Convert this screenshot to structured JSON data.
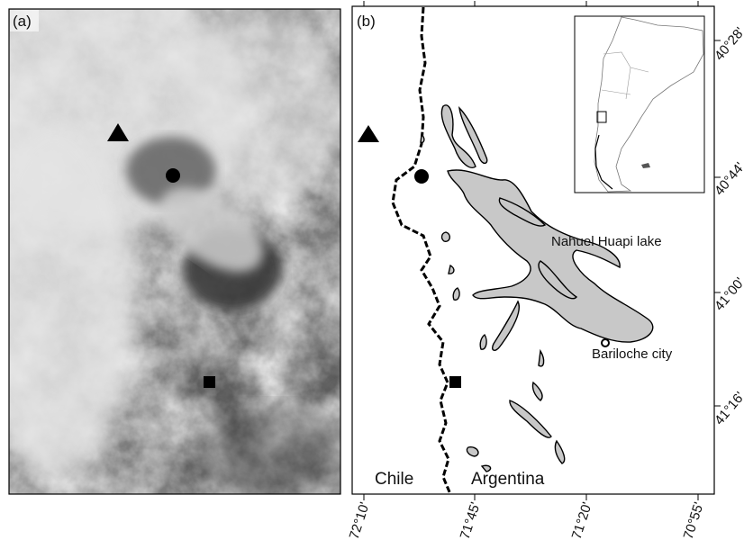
{
  "panels": {
    "a": {
      "label": "(a)"
    },
    "b": {
      "label": "(b)"
    }
  },
  "map_labels": {
    "chile": "Chile",
    "argentina": "Argentina",
    "lake": "Nahuel Huapi lake",
    "city": "Bariloche city"
  },
  "lon_ticks": [
    "72°10'",
    "71°45'",
    "71°20'",
    "70°55'"
  ],
  "lat_ticks": [
    "40°28'",
    "40°44'",
    "41°00'",
    "41°16'"
  ]
}
